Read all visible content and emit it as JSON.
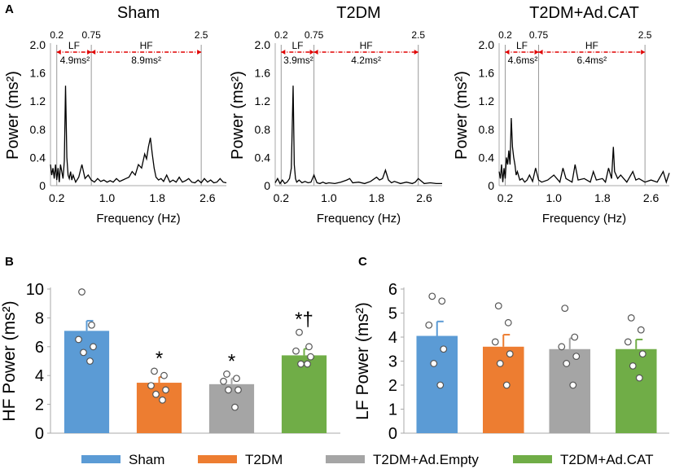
{
  "panel_labels": {
    "a": "A",
    "b": "B",
    "c": "C"
  },
  "chart_data": [
    {
      "type": "line",
      "title": "Sham",
      "xlabel": "Frequency (Hz)",
      "ylabel": "Power  (ms²)",
      "xlim": [
        0.1,
        2.9
      ],
      "ylim": [
        0,
        2.0
      ],
      "xticks": [
        0.2,
        1.0,
        1.8,
        2.6
      ],
      "xtick_labels": [
        "0.2",
        "1.0",
        "1.8",
        "2.6"
      ],
      "yticks": [
        0,
        0.4,
        0.8,
        1.2,
        1.6,
        2.0
      ],
      "ytick_labels": [
        "0",
        "0.4",
        "0.8",
        "1.2",
        "1.6",
        "2.0"
      ],
      "band_lines": [
        0.2,
        0.75,
        2.5
      ],
      "band_line_labels": [
        "0.2",
        "0.75",
        "2.5"
      ],
      "lf_label": "LF",
      "hf_label": "HF",
      "lf_value": "4.9ms²",
      "hf_value": "8.9ms²",
      "x": [
        0.1,
        0.12,
        0.14,
        0.16,
        0.18,
        0.2,
        0.22,
        0.24,
        0.26,
        0.28,
        0.3,
        0.32,
        0.34,
        0.36,
        0.38,
        0.4,
        0.42,
        0.44,
        0.46,
        0.5,
        0.55,
        0.6,
        0.65,
        0.7,
        0.75,
        0.8,
        0.85,
        0.9,
        0.95,
        1.0,
        1.05,
        1.1,
        1.15,
        1.2,
        1.25,
        1.3,
        1.35,
        1.4,
        1.45,
        1.5,
        1.55,
        1.6,
        1.63,
        1.66,
        1.69,
        1.72,
        1.75,
        1.78,
        1.82,
        1.86,
        1.9,
        1.95,
        2.0,
        2.05,
        2.1,
        2.15,
        2.2,
        2.25,
        2.3,
        2.35,
        2.4,
        2.45,
        2.5,
        2.55,
        2.6,
        2.65,
        2.7,
        2.75,
        2.8,
        2.85,
        2.9
      ],
      "y": [
        0.3,
        0.15,
        0.25,
        0.1,
        0.3,
        0.08,
        0.25,
        0.05,
        0.3,
        0.2,
        0.1,
        0.35,
        1.42,
        0.4,
        0.15,
        0.1,
        0.2,
        0.08,
        0.15,
        0.05,
        0.12,
        0.3,
        0.1,
        0.15,
        0.08,
        0.05,
        0.1,
        0.06,
        0.08,
        0.05,
        0.07,
        0.05,
        0.1,
        0.06,
        0.08,
        0.1,
        0.12,
        0.2,
        0.15,
        0.3,
        0.25,
        0.45,
        0.38,
        0.55,
        0.68,
        0.45,
        0.25,
        0.12,
        0.08,
        0.1,
        0.06,
        0.15,
        0.05,
        0.08,
        0.05,
        0.12,
        0.05,
        0.07,
        0.1,
        0.05,
        0.04,
        0.08,
        0.04,
        0.1,
        0.05,
        0.08,
        0.04,
        0.05,
        0.1,
        0.05,
        0.04
      ]
    },
    {
      "type": "line",
      "title": "T2DM",
      "xlabel": "Frequency (Hz)",
      "ylabel": "Power  (ms²)",
      "xlim": [
        0.1,
        2.9
      ],
      "ylim": [
        0,
        2.0
      ],
      "xticks": [
        0.2,
        1.0,
        1.8,
        2.6
      ],
      "xtick_labels": [
        "0.2",
        "1.0",
        "1.8",
        "2.6"
      ],
      "yticks": [
        0,
        0.4,
        0.8,
        1.2,
        1.6,
        2.0
      ],
      "ytick_labels": [
        "0",
        "0.4",
        "0.8",
        "1.2",
        "1.6",
        "2.0"
      ],
      "band_lines": [
        0.2,
        0.75,
        2.5
      ],
      "band_line_labels": [
        "0.2",
        "0.75",
        "2.5"
      ],
      "lf_label": "LF",
      "hf_label": "HF",
      "lf_value": "3.9ms²",
      "hf_value": "4.2ms²",
      "x": [
        0.1,
        0.14,
        0.18,
        0.22,
        0.26,
        0.3,
        0.34,
        0.37,
        0.4,
        0.42,
        0.44,
        0.46,
        0.5,
        0.55,
        0.6,
        0.65,
        0.7,
        0.75,
        0.8,
        0.85,
        0.9,
        0.95,
        1.0,
        1.1,
        1.2,
        1.3,
        1.35,
        1.4,
        1.5,
        1.6,
        1.7,
        1.8,
        1.85,
        1.9,
        1.95,
        2.0,
        2.05,
        2.1,
        2.2,
        2.3,
        2.4,
        2.45,
        2.5,
        2.6,
        2.7,
        2.8,
        2.9
      ],
      "y": [
        0.04,
        0.1,
        0.03,
        0.08,
        0.03,
        0.05,
        0.1,
        0.25,
        1.42,
        0.3,
        0.1,
        0.05,
        0.08,
        0.04,
        0.06,
        0.04,
        0.05,
        0.15,
        0.04,
        0.03,
        0.05,
        0.03,
        0.04,
        0.03,
        0.05,
        0.08,
        0.1,
        0.04,
        0.05,
        0.03,
        0.06,
        0.12,
        0.08,
        0.1,
        0.22,
        0.08,
        0.04,
        0.06,
        0.03,
        0.05,
        0.03,
        0.05,
        0.1,
        0.03,
        0.04,
        0.03,
        0.03
      ]
    },
    {
      "type": "line",
      "title": "T2DM+Ad.CAT",
      "xlabel": "Frequency (Hz)",
      "ylabel": "Power  (ms²)",
      "xlim": [
        0.1,
        2.9
      ],
      "ylim": [
        0,
        2.0
      ],
      "xticks": [
        0.2,
        1.0,
        1.8,
        2.6
      ],
      "xtick_labels": [
        "0.2",
        "1.0",
        "1.8",
        "2.6"
      ],
      "yticks": [
        0,
        0.4,
        0.8,
        1.2,
        1.6,
        2.0
      ],
      "ytick_labels": [
        "0",
        "0.4",
        "0.8",
        "1.2",
        "1.6",
        "2.0"
      ],
      "band_lines": [
        0.2,
        0.75,
        2.5
      ],
      "band_line_labels": [
        "0.2",
        "0.75",
        "2.5"
      ],
      "lf_label": "LF",
      "hf_label": "HF",
      "lf_value": "4.6ms²",
      "hf_value": "6.4ms²",
      "x": [
        0.1,
        0.12,
        0.14,
        0.16,
        0.18,
        0.2,
        0.22,
        0.24,
        0.26,
        0.28,
        0.3,
        0.32,
        0.34,
        0.36,
        0.38,
        0.4,
        0.44,
        0.48,
        0.52,
        0.56,
        0.6,
        0.65,
        0.7,
        0.75,
        0.8,
        0.9,
        1.0,
        1.1,
        1.15,
        1.2,
        1.3,
        1.35,
        1.4,
        1.5,
        1.6,
        1.65,
        1.7,
        1.8,
        1.85,
        1.9,
        1.95,
        1.98,
        2.0,
        2.05,
        2.1,
        2.2,
        2.3,
        2.35,
        2.4,
        2.5,
        2.6,
        2.7,
        2.8,
        2.85,
        2.9
      ],
      "y": [
        0.2,
        0.1,
        0.3,
        0.05,
        0.25,
        0.1,
        0.4,
        0.3,
        0.5,
        0.3,
        0.96,
        0.55,
        0.4,
        0.3,
        0.15,
        0.2,
        0.08,
        0.1,
        0.05,
        0.08,
        0.15,
        0.06,
        0.25,
        0.08,
        0.05,
        0.08,
        0.15,
        0.05,
        0.25,
        0.1,
        0.05,
        0.3,
        0.08,
        0.1,
        0.05,
        0.2,
        0.08,
        0.1,
        0.05,
        0.25,
        0.1,
        0.55,
        0.2,
        0.1,
        0.15,
        0.05,
        0.2,
        0.08,
        0.1,
        0.05,
        0.08,
        0.05,
        0.2,
        0.05,
        0.18
      ]
    },
    {
      "type": "bar",
      "ylabel": "HF Power (ms²)",
      "ylim": [
        0,
        10
      ],
      "yticks": [
        0,
        2,
        4,
        6,
        8,
        10
      ],
      "ytick_labels": [
        "0",
        "2",
        "4",
        "6",
        "8",
        "10"
      ],
      "categories": [
        "Sham",
        "T2DM",
        "T2DM+Ad.Empty",
        "T2DM+Ad.CAT"
      ],
      "values": [
        7.1,
        3.5,
        3.4,
        5.4
      ],
      "errors": [
        0.7,
        0.4,
        0.4,
        0.45
      ],
      "colors": [
        "#5b9bd5",
        "#ed7d31",
        "#a5a5a5",
        "#70ad47"
      ],
      "points": [
        [
          9.8,
          7.5,
          6.5,
          6.0,
          5.6,
          5.0
        ],
        [
          4.3,
          4.0,
          3.3,
          3.0,
          2.7,
          2.3
        ],
        [
          4.1,
          3.8,
          3.6,
          3.0,
          3.0,
          1.8
        ],
        [
          7.0,
          6.0,
          5.7,
          5.3,
          4.8,
          4.8
        ]
      ],
      "annotations": [
        "",
        "*",
        "*",
        "*†"
      ]
    },
    {
      "type": "bar",
      "ylabel": "LF Power (ms²)",
      "ylim": [
        0,
        6
      ],
      "yticks": [
        0,
        1,
        2,
        3,
        4,
        5,
        6
      ],
      "ytick_labels": [
        "0",
        "1",
        "2",
        "3",
        "4",
        "5",
        "6"
      ],
      "categories": [
        "Sham",
        "T2DM",
        "T2DM+Ad.Empty",
        "T2DM+Ad.CAT"
      ],
      "values": [
        4.05,
        3.6,
        3.5,
        3.5
      ],
      "errors": [
        0.6,
        0.5,
        0.45,
        0.4
      ],
      "colors": [
        "#5b9bd5",
        "#ed7d31",
        "#a5a5a5",
        "#70ad47"
      ],
      "points": [
        [
          5.7,
          5.5,
          4.5,
          3.5,
          2.9,
          2.0
        ],
        [
          5.3,
          4.6,
          3.8,
          3.3,
          2.9,
          2.0
        ],
        [
          5.2,
          4.0,
          3.6,
          3.2,
          2.9,
          2.0
        ],
        [
          4.8,
          4.3,
          3.8,
          3.3,
          2.8,
          2.3
        ]
      ],
      "annotations": [
        "",
        "",
        "",
        ""
      ]
    }
  ],
  "legend": [
    {
      "label": "Sham",
      "color": "#5b9bd5"
    },
    {
      "label": "T2DM",
      "color": "#ed7d31"
    },
    {
      "label": "T2DM+Ad.Empty",
      "color": "#a5a5a5"
    },
    {
      "label": "T2DM+Ad.CAT",
      "color": "#70ad47"
    }
  ]
}
